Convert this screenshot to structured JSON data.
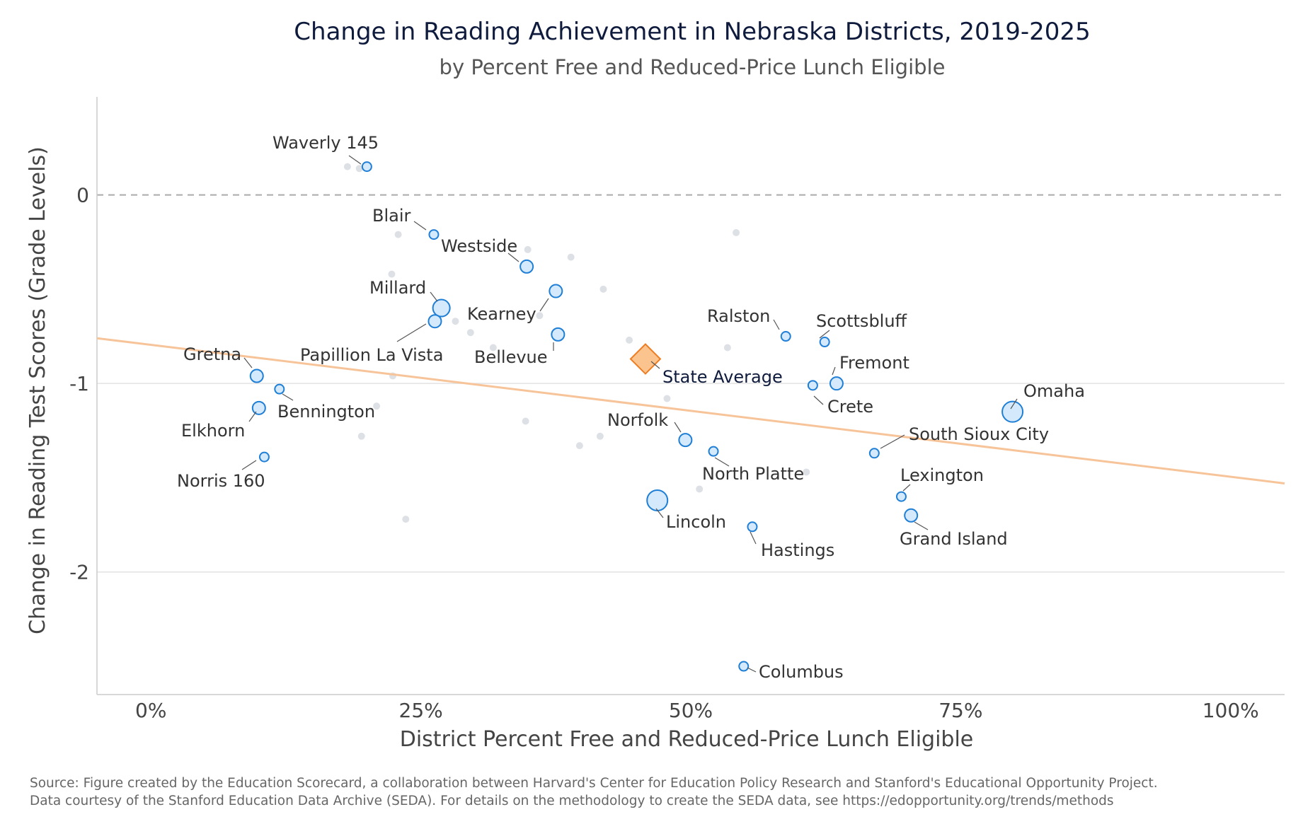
{
  "chart_data": {
    "type": "scatter",
    "title": "Change in Reading Achievement in Nebraska Districts, 2019-2025",
    "subtitle": "by Percent Free and Reduced-Price Lunch Eligible",
    "xlabel": "District Percent Free and Reduced-Price Lunch Eligible",
    "ylabel": "Change in Reading Test Scores (Grade Levels)",
    "xlim": [
      -0.05,
      1.05
    ],
    "ylim": [
      -2.65,
      0.52
    ],
    "x_ticks": [
      {
        "value": 0,
        "label": "0%"
      },
      {
        "value": 0.25,
        "label": "25%"
      },
      {
        "value": 0.5,
        "label": "50%"
      },
      {
        "value": 0.75,
        "label": "75%"
      },
      {
        "value": 1.0,
        "label": "100%"
      }
    ],
    "y_ticks": [
      {
        "value": 0,
        "label": "0"
      },
      {
        "value": -1,
        "label": "-1"
      },
      {
        "value": -2,
        "label": "-2"
      }
    ],
    "reference_line": {
      "y": 0,
      "style": "dashed"
    },
    "grid": {
      "horizontal": true,
      "vertical": false
    },
    "trend_line": {
      "x": [
        -0.05,
        1.05
      ],
      "y": [
        -0.76,
        -1.53
      ],
      "color": "#f7c49a"
    },
    "labeled_districts": [
      {
        "name": "Waverly 145",
        "x": 0.2,
        "y": 0.15,
        "size": "small"
      },
      {
        "name": "Blair",
        "x": 0.262,
        "y": -0.21,
        "size": "small"
      },
      {
        "name": "Westside",
        "x": 0.348,
        "y": -0.38,
        "size": "medium"
      },
      {
        "name": "Millard",
        "x": 0.269,
        "y": -0.6,
        "size": "large"
      },
      {
        "name": "Papillion La Vista",
        "x": 0.263,
        "y": -0.67,
        "size": "medium"
      },
      {
        "name": "Kearney",
        "x": 0.375,
        "y": -0.51,
        "size": "medium"
      },
      {
        "name": "Bellevue",
        "x": 0.377,
        "y": -0.74,
        "size": "medium"
      },
      {
        "name": "Gretna",
        "x": 0.098,
        "y": -0.96,
        "size": "medium"
      },
      {
        "name": "Bennington",
        "x": 0.119,
        "y": -1.03,
        "size": "small"
      },
      {
        "name": "Elkhorn",
        "x": 0.1,
        "y": -1.13,
        "size": "medium"
      },
      {
        "name": "Norris 160",
        "x": 0.105,
        "y": -1.39,
        "size": "small"
      },
      {
        "name": "Ralston",
        "x": 0.588,
        "y": -0.75,
        "size": "small"
      },
      {
        "name": "Scottsbluff",
        "x": 0.624,
        "y": -0.78,
        "size": "small"
      },
      {
        "name": "Fremont",
        "x": 0.635,
        "y": -1.0,
        "size": "medium"
      },
      {
        "name": "Crete",
        "x": 0.613,
        "y": -1.01,
        "size": "small"
      },
      {
        "name": "Omaha",
        "x": 0.798,
        "y": -1.15,
        "size": "xlarge"
      },
      {
        "name": "South Sioux City",
        "x": 0.67,
        "y": -1.37,
        "size": "small"
      },
      {
        "name": "Norfolk",
        "x": 0.495,
        "y": -1.3,
        "size": "medium"
      },
      {
        "name": "North Platte",
        "x": 0.521,
        "y": -1.36,
        "size": "small"
      },
      {
        "name": "Lincoln",
        "x": 0.469,
        "y": -1.62,
        "size": "xlarge"
      },
      {
        "name": "Hastings",
        "x": 0.557,
        "y": -1.76,
        "size": "small"
      },
      {
        "name": "Lexington",
        "x": 0.695,
        "y": -1.6,
        "size": "small"
      },
      {
        "name": "Grand Island",
        "x": 0.704,
        "y": -1.7,
        "size": "medium"
      },
      {
        "name": "Columbus",
        "x": 0.549,
        "y": -2.5,
        "size": "small"
      }
    ],
    "state_average": {
      "name": "State Average",
      "x": 0.458,
      "y": -0.87
    },
    "other_districts": [
      {
        "x": 0.182,
        "y": 0.15
      },
      {
        "x": 0.193,
        "y": 0.14
      },
      {
        "x": 0.229,
        "y": -0.21
      },
      {
        "x": 0.349,
        "y": -0.29
      },
      {
        "x": 0.389,
        "y": -0.33
      },
      {
        "x": 0.542,
        "y": -0.2
      },
      {
        "x": 0.223,
        "y": -0.42
      },
      {
        "x": 0.419,
        "y": -0.5
      },
      {
        "x": 0.36,
        "y": -0.64
      },
      {
        "x": 0.282,
        "y": -0.67
      },
      {
        "x": 0.296,
        "y": -0.73
      },
      {
        "x": 0.443,
        "y": -0.77
      },
      {
        "x": 0.317,
        "y": -0.81
      },
      {
        "x": 0.534,
        "y": -0.81
      },
      {
        "x": 0.224,
        "y": -0.96
      },
      {
        "x": 0.478,
        "y": -1.08
      },
      {
        "x": 0.209,
        "y": -1.12
      },
      {
        "x": 0.347,
        "y": -1.2
      },
      {
        "x": 0.195,
        "y": -1.28
      },
      {
        "x": 0.416,
        "y": -1.28
      },
      {
        "x": 0.397,
        "y": -1.33
      },
      {
        "x": 0.607,
        "y": -1.47
      },
      {
        "x": 0.508,
        "y": -1.56
      },
      {
        "x": 0.236,
        "y": -1.72
      }
    ],
    "colors": {
      "labeled_fill": "#d4e9fb",
      "labeled_stroke": "#1f7fd6",
      "other_fill": "#dde1e6",
      "state_fill": "#fbc48e",
      "state_stroke": "#ec7d22",
      "trend": "#f7c49a",
      "reference": "#aaaaaa",
      "grid": "#e2e2e2"
    }
  },
  "source_text": [
    "Source: Figure created by the Education Scorecard, a collaboration between Harvard's Center for Education Policy Research and Stanford's Educational Opportunity Project.",
    "Data courtesy of the Stanford Education Data Archive (SEDA). For details on the methodology to create the SEDA data, see https://edopportunity.org/trends/methods"
  ]
}
